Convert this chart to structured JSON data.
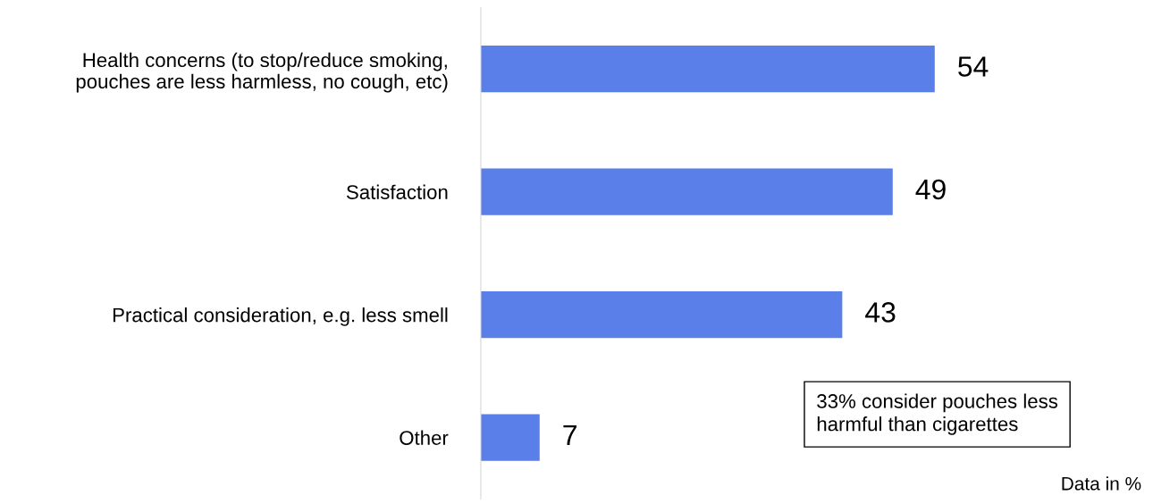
{
  "chart_data": {
    "type": "bar",
    "orientation": "horizontal",
    "categories": [
      "Health concerns (to stop/reduce smoking,\npouches are less harmless, no cough, etc)",
      "Satisfaction",
      "Practical consideration, e.g. less smell",
      "Other"
    ],
    "values": [
      54,
      49,
      43,
      7
    ],
    "color": "#5b7fe8",
    "data_labels": true,
    "grid": false,
    "legend": false,
    "annotations": [
      "33% consider pouches less\nharmful than cigarettes",
      "Data in %"
    ]
  }
}
